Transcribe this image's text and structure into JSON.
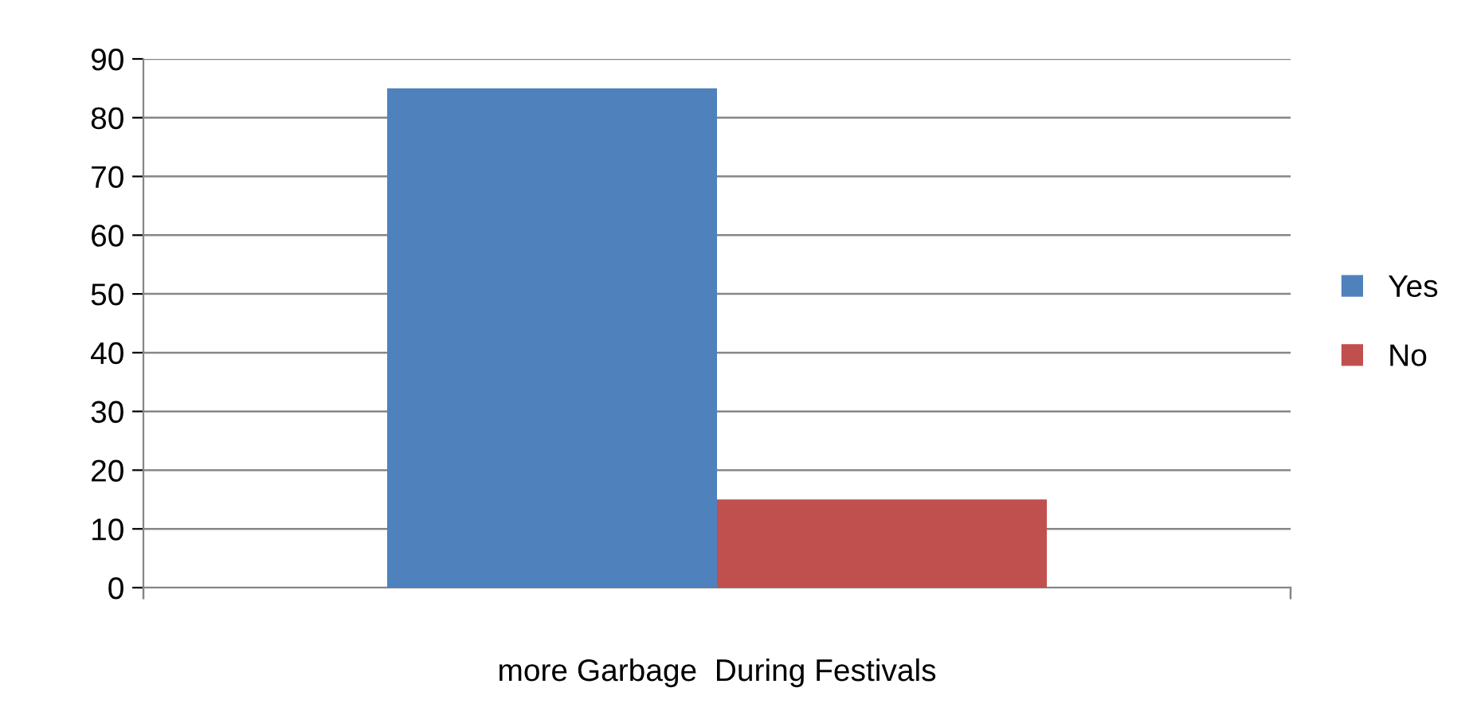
{
  "chart_data": {
    "type": "bar",
    "categories": [
      "more Garbage  During Festivals"
    ],
    "series": [
      {
        "name": "Yes",
        "color": "#4f81bd",
        "values": [
          85
        ]
      },
      {
        "name": "No",
        "color": "#c0504d",
        "values": [
          15
        ]
      }
    ],
    "ylim": [
      0,
      90
    ],
    "yticks": [
      0,
      10,
      20,
      30,
      40,
      50,
      60,
      70,
      80,
      90
    ],
    "grid": "y",
    "legend": "right"
  }
}
